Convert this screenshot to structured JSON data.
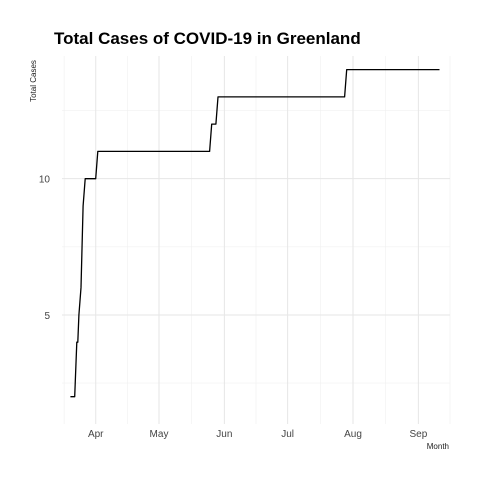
{
  "chart_data": {
    "type": "line",
    "title": "Total Cases of COVID-19 in Greenland",
    "xlabel": "Month",
    "ylabel": "Total Cases",
    "x_tick_labels": [
      "Apr",
      "May",
      "Jun",
      "Jul",
      "Aug",
      "Sep"
    ],
    "x_tick_days": [
      92,
      122,
      153,
      183,
      214,
      245
    ],
    "y_ticks": [
      5,
      10
    ],
    "xlim": [
      76,
      260
    ],
    "ylim": [
      1.0,
      14.5
    ],
    "grid": true,
    "colors": {
      "line": "#000000",
      "grid": "#e6e6e6",
      "background": "#ffffff"
    },
    "series": [
      {
        "name": "Total Cases",
        "x_day_of_year": [
          80,
          82,
          83,
          83.5,
          84,
          85,
          86,
          87,
          88,
          92,
          93,
          146,
          147,
          149,
          150,
          210,
          211,
          255
        ],
        "values": [
          2,
          2,
          4,
          4,
          5,
          6,
          9,
          10,
          10,
          10,
          11,
          11,
          12,
          12,
          13,
          13,
          14,
          14
        ]
      }
    ]
  }
}
